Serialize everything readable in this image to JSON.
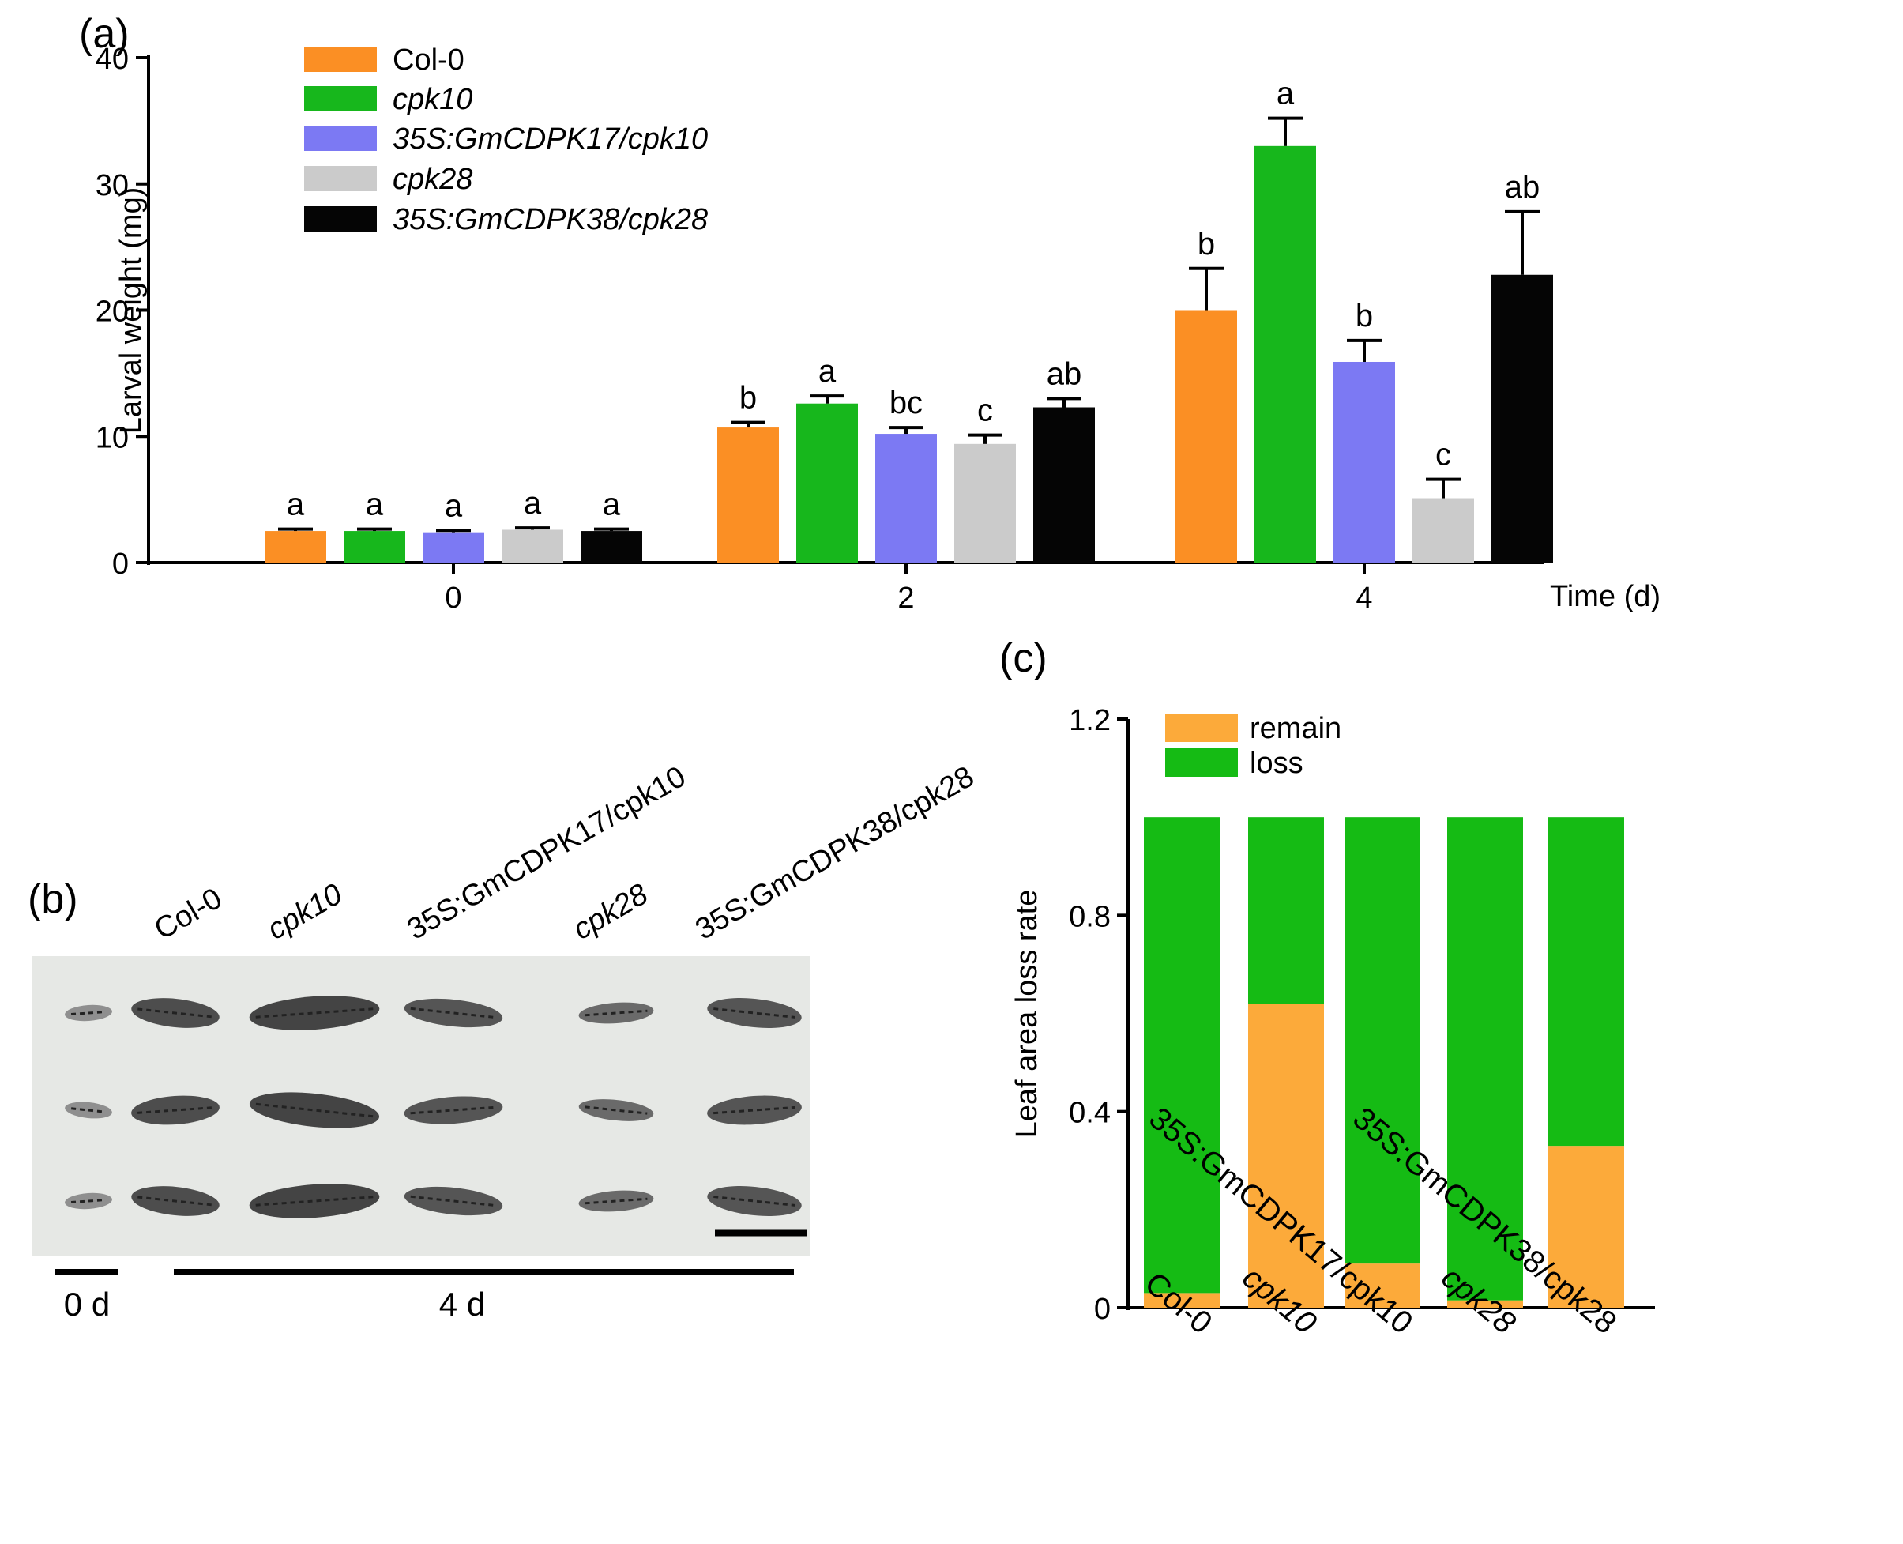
{
  "panel_a": {
    "label": "(a)",
    "legend": [
      {
        "name": "Col-0",
        "italic": false
      },
      {
        "name": "cpk10",
        "italic": true
      },
      {
        "name": "35S:GmCDPK17/cpk10",
        "italic": true
      },
      {
        "name": "cpk28",
        "italic": true
      },
      {
        "name": "35S:GmCDPK38/cpk28",
        "italic": true
      }
    ]
  },
  "panel_b": {
    "label": "(b)",
    "genotypes": [
      {
        "name": "Col-0",
        "italic": false
      },
      {
        "name": "cpk10",
        "italic": true
      },
      {
        "name": "35S:GmCDPK17/cpk10",
        "italic": false
      },
      {
        "name": "cpk28",
        "italic": true
      },
      {
        "name": "35S:GmCDPK38/cpk28",
        "italic": false
      }
    ],
    "time_labels": [
      "0 d",
      "4 d"
    ]
  },
  "panel_c": {
    "label": "(c)"
  },
  "chart_data": [
    {
      "type": "bar",
      "title": "",
      "xlabel": "Time (d)",
      "ylabel": "Larval weight (mg)",
      "ylim": [
        0,
        40
      ],
      "yticks": [
        0,
        10,
        20,
        30,
        40
      ],
      "categories": [
        "0",
        "2",
        "4"
      ],
      "colors": [
        "#fb8f24",
        "#17b71c",
        "#7c79f3",
        "#cbcbcb",
        "#050505"
      ],
      "series": [
        {
          "name": "Col-0",
          "values": [
            2.5,
            10.7,
            20.0
          ],
          "errors": [
            0.15,
            0.4,
            3.3
          ],
          "letters": [
            "a",
            "b",
            "b"
          ]
        },
        {
          "name": "cpk10",
          "values": [
            2.5,
            12.6,
            33.0
          ],
          "errors": [
            0.15,
            0.6,
            2.2
          ],
          "letters": [
            "a",
            "a",
            "a"
          ]
        },
        {
          "name": "35S:GmCDPK17/cpk10",
          "values": [
            2.4,
            10.2,
            15.9
          ],
          "errors": [
            0.15,
            0.5,
            1.7
          ],
          "letters": [
            "a",
            "bc",
            "b"
          ]
        },
        {
          "name": "cpk28",
          "values": [
            2.6,
            9.4,
            5.1
          ],
          "errors": [
            0.15,
            0.7,
            1.5
          ],
          "letters": [
            "a",
            "c",
            "c"
          ]
        },
        {
          "name": "35S:GmCDPK38/cpk28",
          "values": [
            2.5,
            12.3,
            22.8
          ],
          "errors": [
            0.15,
            0.7,
            5.0
          ],
          "letters": [
            "a",
            "ab",
            "ab"
          ]
        }
      ]
    },
    {
      "type": "bar",
      "stacked": true,
      "title": "",
      "xlabel": "",
      "ylabel": "Leaf area loss rate",
      "ylim": [
        0,
        1.2
      ],
      "yticks": [
        0,
        0.4,
        0.8,
        1.2
      ],
      "categories": [
        "Col-0",
        "cpk10",
        "35S:GmCDPK17/cpk10",
        "cpk28",
        "35S:GmCDPK38/cpk28"
      ],
      "series": [
        {
          "name": "remain",
          "color": "#fcaa3a",
          "values": [
            0.03,
            0.62,
            0.09,
            0.015,
            0.33
          ]
        },
        {
          "name": "loss",
          "color": "#15bb14",
          "values": [
            0.97,
            0.38,
            0.91,
            0.985,
            0.67
          ]
        }
      ]
    }
  ]
}
